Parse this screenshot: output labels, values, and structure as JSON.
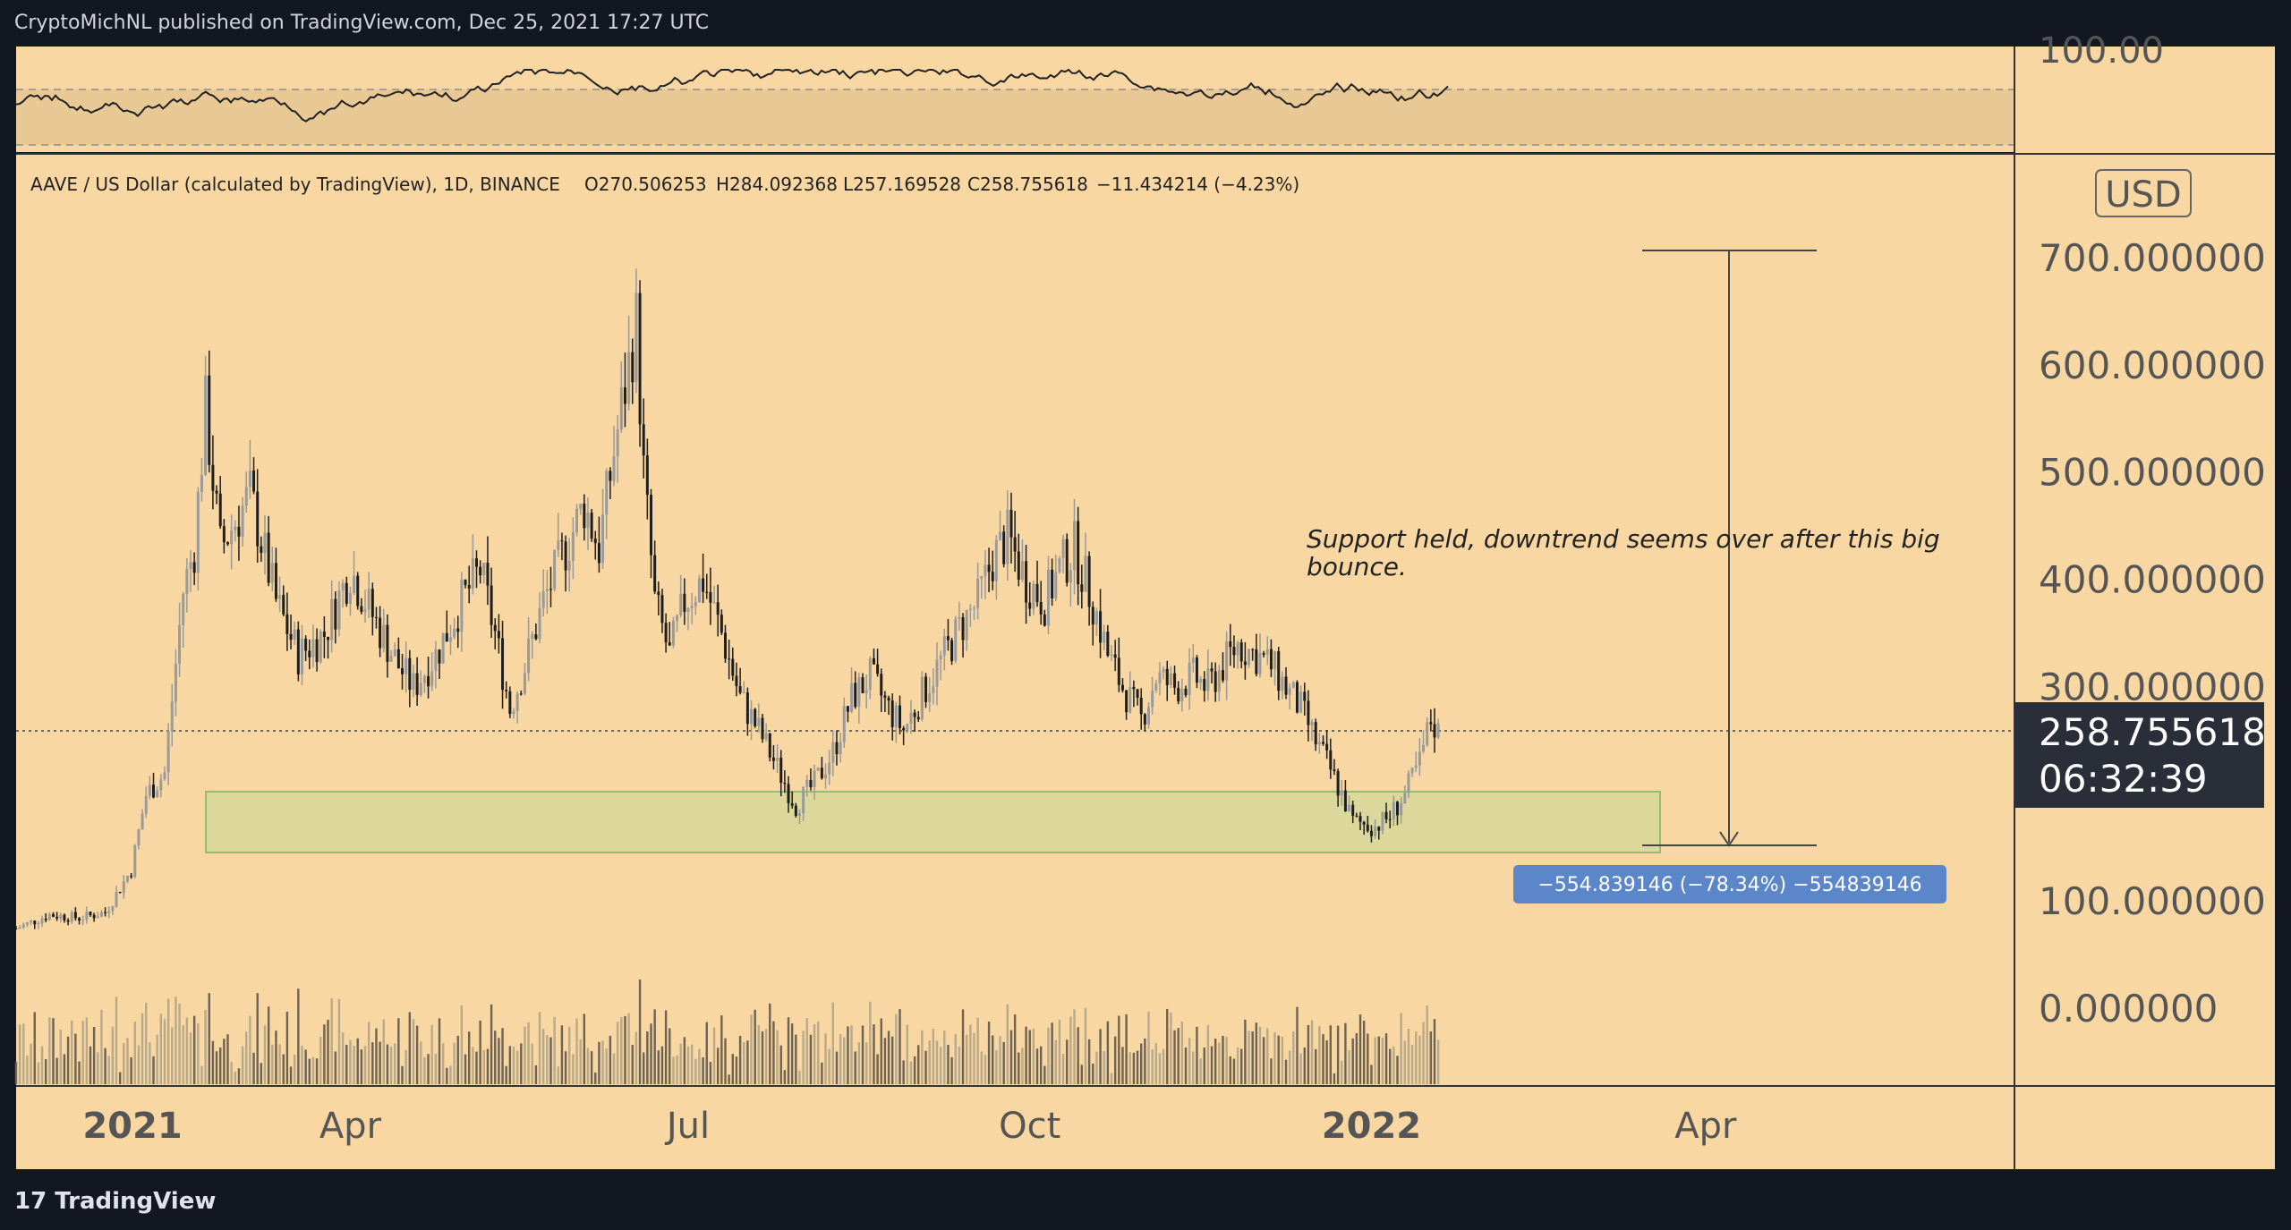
{
  "header": {
    "published_text": "CryptoMichNL published on TradingView.com, Dec 25, 2021 17:27 UTC"
  },
  "footer": {
    "logo_mark": "17",
    "brand": "TradingView"
  },
  "legend": {
    "symbol": "AAVE / US Dollar (calculated by TradingView), 1D, BINANCE",
    "open_label": "O",
    "open": "270.506253",
    "high_label": "H",
    "high": "284.092368",
    "low_label": "L",
    "low": "257.169528",
    "close_label": "C",
    "close": "258.755618",
    "change": "−11.434214 (−4.23%)"
  },
  "price_scale": {
    "currency": "USD",
    "current_price": "258.755618",
    "countdown": "06:32:39",
    "indicator_top_label": "100.00"
  },
  "annotation": {
    "line1": "Support held, downtrend seems over after this big",
    "line2": "bounce."
  },
  "measure": {
    "label": "−554.839146 (−78.34%) −554839146"
  },
  "colors": {
    "background": "#f8d7a2",
    "frame": "#131722",
    "support_zone": "#d8d79a",
    "measure_label": "#5b86c9",
    "price_label": "#2a2e39"
  },
  "chart_data": {
    "type": "candlestick",
    "yticks": [
      "700.000000",
      "600.000000",
      "500.000000",
      "400.000000",
      "300.000000",
      "100.000000",
      "0.000000"
    ],
    "xticks": [
      "2021",
      "Apr",
      "Jul",
      "Oct",
      "2022",
      "Apr"
    ],
    "ylim": [
      0,
      700
    ],
    "support_zone": [
      150,
      205
    ],
    "prices": [
      [
        "2021-01-01",
        75
      ],
      [
        "2021-01-10",
        88
      ],
      [
        "2021-01-18",
        85
      ],
      [
        "2021-01-25",
        90
      ],
      [
        "2021-02-01",
        130
      ],
      [
        "2021-02-05",
        200
      ],
      [
        "2021-02-10",
        220
      ],
      [
        "2021-02-15",
        390
      ],
      [
        "2021-02-18",
        430
      ],
      [
        "2021-02-21",
        560
      ],
      [
        "2021-02-25",
        430
      ],
      [
        "2021-03-05",
        480
      ],
      [
        "2021-03-12",
        380
      ],
      [
        "2021-03-18",
        330
      ],
      [
        "2021-03-25",
        350
      ],
      [
        "2021-04-01",
        410
      ],
      [
        "2021-04-08",
        360
      ],
      [
        "2021-04-14",
        320
      ],
      [
        "2021-04-18",
        300
      ],
      [
        "2021-04-24",
        330
      ],
      [
        "2021-05-01",
        380
      ],
      [
        "2021-05-06",
        410
      ],
      [
        "2021-05-10",
        350
      ],
      [
        "2021-05-14",
        280
      ],
      [
        "2021-05-18",
        320
      ],
      [
        "2021-05-23",
        380
      ],
      [
        "2021-05-29",
        430
      ],
      [
        "2021-06-03",
        470
      ],
      [
        "2021-06-07",
        430
      ],
      [
        "2021-06-11",
        520
      ],
      [
        "2021-06-15",
        600
      ],
      [
        "2021-06-17",
        640
      ],
      [
        "2021-06-19",
        500
      ],
      [
        "2021-06-22",
        380
      ],
      [
        "2021-06-26",
        330
      ],
      [
        "2021-06-30",
        380
      ],
      [
        "2021-07-05",
        400
      ],
      [
        "2021-07-10",
        350
      ],
      [
        "2021-07-15",
        290
      ],
      [
        "2021-07-20",
        260
      ],
      [
        "2021-07-25",
        225
      ],
      [
        "2021-07-30",
        190
      ],
      [
        "2021-08-04",
        210
      ],
      [
        "2021-08-09",
        240
      ],
      [
        "2021-08-14",
        290
      ],
      [
        "2021-08-19",
        310
      ],
      [
        "2021-08-24",
        280
      ],
      [
        "2021-08-28",
        260
      ],
      [
        "2021-09-03",
        300
      ],
      [
        "2021-09-08",
        330
      ],
      [
        "2021-09-13",
        360
      ],
      [
        "2021-09-17",
        380
      ],
      [
        "2021-09-21",
        420
      ],
      [
        "2021-09-25",
        440
      ],
      [
        "2021-09-30",
        400
      ],
      [
        "2021-10-05",
        380
      ],
      [
        "2021-10-09",
        410
      ],
      [
        "2021-10-13",
        430
      ],
      [
        "2021-10-18",
        380
      ],
      [
        "2021-10-22",
        330
      ],
      [
        "2021-10-26",
        300
      ],
      [
        "2021-10-31",
        270
      ],
      [
        "2021-11-04",
        310
      ],
      [
        "2021-11-09",
        300
      ],
      [
        "2021-11-14",
        310
      ],
      [
        "2021-11-18",
        300
      ],
      [
        "2021-11-22",
        320
      ],
      [
        "2021-11-26",
        340
      ],
      [
        "2021-12-01",
        330
      ],
      [
        "2021-12-05",
        320
      ],
      [
        "2021-12-09",
        300
      ],
      [
        "2021-12-13",
        280
      ],
      [
        "2021-12-17",
        250
      ],
      [
        "2021-12-20",
        230
      ],
      [
        "2021-12-24",
        200
      ],
      [
        "2021-12-27",
        175
      ],
      [
        "2022-01-02",
        170
      ],
      [
        "2022-01-06",
        180
      ],
      [
        "2022-01-10",
        200
      ],
      [
        "2022-01-14",
        230
      ],
      [
        "2022-01-17",
        270
      ],
      [
        "2022-01-19",
        258
      ]
    ]
  }
}
